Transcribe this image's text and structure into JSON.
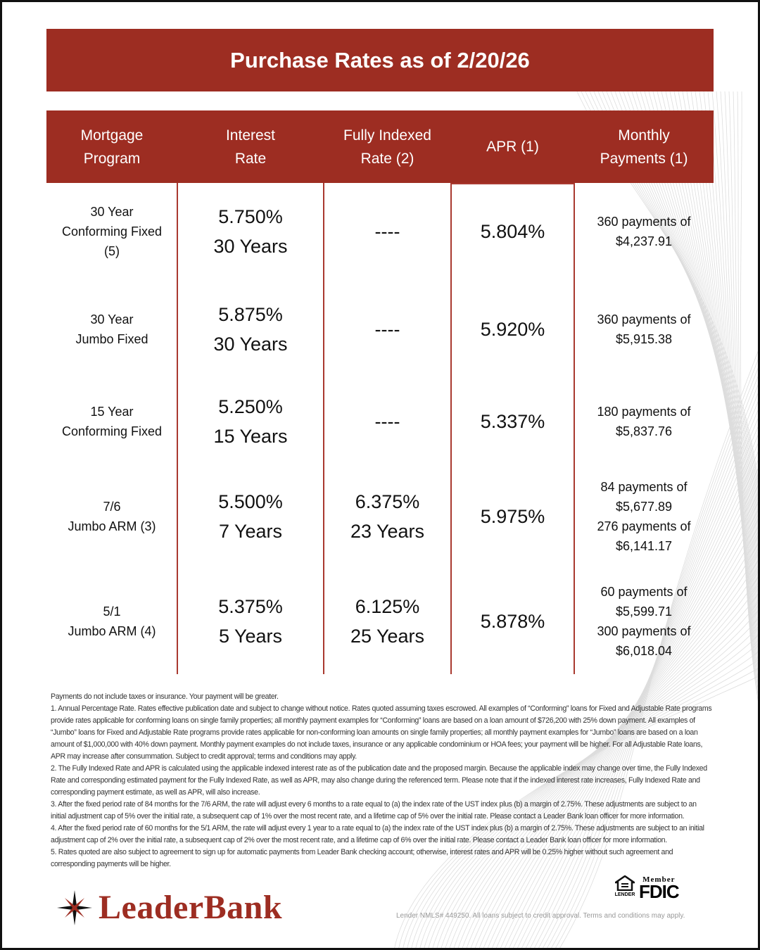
{
  "title": "Purchase Rates as of 2/20/26",
  "headers": [
    "Mortgage\nProgram",
    "Interest\nRate",
    "Fully Indexed\nRate (2)",
    "APR (1)",
    "Monthly\nPayments (1)"
  ],
  "rows": [
    {
      "program": "30 Year\nConforming Fixed\n(5)",
      "rate": "5.750%\n30 Years",
      "indexed": "----",
      "apr": "5.804%",
      "payments": "360 payments of\n$4,237.91"
    },
    {
      "program": "30 Year\nJumbo Fixed",
      "rate": "5.875%\n30 Years",
      "indexed": "----",
      "apr": "5.920%",
      "payments": "360 payments of\n$5,915.38"
    },
    {
      "program": "15 Year\nConforming Fixed",
      "rate": "5.250%\n15 Years",
      "indexed": "----",
      "apr": "5.337%",
      "payments": "180 payments of\n$5,837.76"
    },
    {
      "program": "7/6\nJumbo ARM (3)",
      "rate": "5.500%\n7 Years",
      "indexed": "6.375%\n23 Years",
      "apr": "5.975%",
      "payments": "84 payments of\n$5,677.89\n276 payments of\n$6,141.17"
    },
    {
      "program": "5/1\nJumbo ARM (4)",
      "rate": "5.375%\n5 Years",
      "indexed": "6.125%\n25 Years",
      "apr": "5.878%",
      "payments": "60 payments of\n$5,599.71\n300 payments of\n$6,018.04"
    }
  ],
  "notes": [
    "Payments do not include taxes or insurance. Your payment will be greater.",
    "1. Annual Percentage Rate. Rates effective publication date and subject to change without notice. Rates quoted assuming taxes escrowed. All examples of “Conforming” loans for Fixed and Adjustable Rate programs provide rates applicable for conforming loans on single family properties; all monthly payment examples for “Conforming” loans are based on a loan amount of $726,200 with 25% down payment. All examples of “Jumbo” loans for Fixed and Adjustable Rate programs provide rates applicable for non-conforming loan amounts on single family properties; all monthly payment examples for “Jumbo” loans are based on a loan amount of $1,000,000 with 40% down payment. Monthly payment examples do not include taxes, insurance or any applicable condominium or HOA fees; your payment will be higher. For all Adjustable Rate loans, APR may increase after consummation. Subject to credit approval; terms and conditions may apply.",
    "2. The Fully Indexed Rate and APR is calculated using the applicable indexed interest rate as of the publication date and the proposed margin. Because the applicable index may change over time, the Fully Indexed Rate and corresponding estimated payment for the Fully Indexed Rate, as well as APR, may also change during the referenced term. Please note that if the indexed interest rate increases, Fully Indexed Rate and corresponding payment estimate, as well as APR, will also increase.",
    "3. After the fixed period rate of 84 months for the 7/6 ARM, the rate will adjust every 6 months to a rate equal to (a) the index rate of the UST index plus (b) a margin of 2.75%. These adjustments are subject to an initial adjustment cap of 5% over the initial rate, a subsequent cap of 1% over the most recent rate, and a lifetime cap of 5% over the initial rate. Please contact a Leader Bank loan officer for more information.",
    "4. After the fixed period rate of 60 months for the 5/1 ARM, the rate will adjust every 1 year to a rate equal to (a) the index rate of the UST index plus (b) a margin of 2.75%. These adjustments are subject to an initial adjustment cap of 2% over the initial rate, a subsequent cap of 2% over the most recent rate, and a lifetime cap of 6% over the initial rate. Please contact a Leader Bank loan officer for more information.",
    "5. Rates quoted are also subject to agreement to sign up for automatic payments from Leader Bank checking account; otherwise, interest rates and APR will be 0.25% higher without such agreement and corresponding payments will be higher."
  ],
  "logo": {
    "text": "LeaderBank"
  },
  "equal_housing": {
    "text": "LENDER"
  },
  "fdic": {
    "member": "Member",
    "name": "FDIC"
  },
  "nmls": "Lender NMLS# 449250. All loans subject to credit approval. Terms and conditions may apply.",
  "colors": {
    "brand": "#9d2d22"
  }
}
